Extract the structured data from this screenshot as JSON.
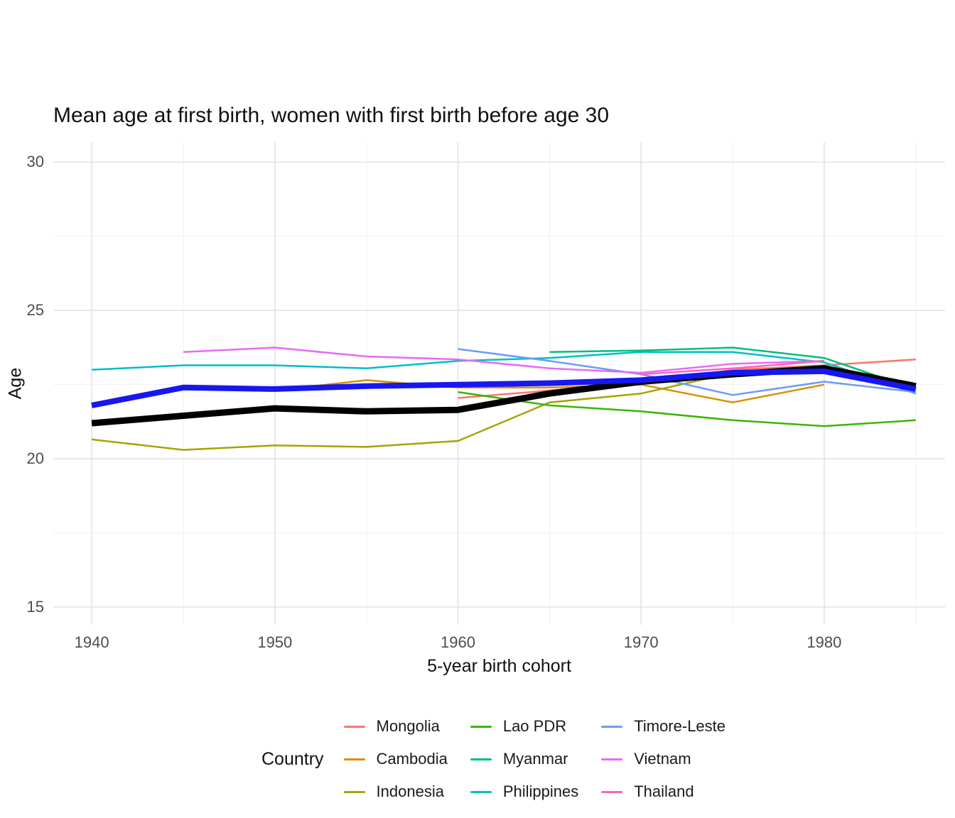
{
  "chart_data": {
    "type": "line",
    "title": "Mean age at first birth, women with first birth before age 30",
    "xlabel": "5-year birth cohort",
    "ylabel": "Age",
    "legend_title": "Country",
    "legend_position": "bottom",
    "grid": "major+minor",
    "x_axis": {
      "ticks": [
        1940,
        1950,
        1960,
        1970,
        1980
      ],
      "minor_ticks": [
        1945,
        1955,
        1965,
        1975,
        1985
      ],
      "range": [
        1937.9,
        1986.6
      ]
    },
    "y_axis": {
      "ticks": [
        15,
        20,
        25,
        30
      ],
      "minor_ticks": [
        17.5,
        22.5,
        27.5
      ],
      "range": [
        14.4,
        30.68
      ]
    },
    "series": [
      {
        "name": "Mongolia",
        "color": "#F8766D",
        "width": 2.5,
        "in_legend": true,
        "x": [
          1960,
          1965,
          1970,
          1975,
          1980,
          1985
        ],
        "y": [
          22.05,
          22.3,
          22.55,
          23.0,
          23.15,
          23.35
        ]
      },
      {
        "name": "Cambodia",
        "color": "#D89000",
        "width": 2.5,
        "in_legend": true,
        "x": [
          1950,
          1955,
          1960,
          1965,
          1970,
          1975,
          1980
        ],
        "y": [
          22.3,
          22.65,
          22.4,
          22.4,
          22.5,
          21.9,
          22.5
        ]
      },
      {
        "name": "Indonesia",
        "color": "#A3A500",
        "width": 2.5,
        "in_legend": true,
        "x": [
          1940,
          1945,
          1950,
          1955,
          1960,
          1965,
          1970,
          1975,
          1980
        ],
        "y": [
          20.65,
          20.3,
          20.45,
          20.4,
          20.6,
          21.9,
          22.2,
          22.9,
          23.15
        ]
      },
      {
        "name": "Lao PDR",
        "color": "#39B600",
        "width": 2.5,
        "in_legend": true,
        "x": [
          1960,
          1965,
          1970,
          1975,
          1980,
          1985
        ],
        "y": [
          22.25,
          21.8,
          21.6,
          21.3,
          21.1,
          21.3
        ]
      },
      {
        "name": "Myanmar",
        "color": "#00BF7D",
        "width": 2.5,
        "in_legend": true,
        "x": [
          1965,
          1970,
          1975,
          1980,
          1985
        ],
        "y": [
          23.6,
          23.65,
          23.75,
          23.4,
          22.35
        ]
      },
      {
        "name": "Philippines",
        "color": "#00BFC4",
        "width": 2.5,
        "in_legend": true,
        "x": [
          1940,
          1945,
          1950,
          1955,
          1960,
          1965,
          1970,
          1975,
          1980,
          1985
        ],
        "y": [
          23.0,
          23.15,
          23.15,
          23.05,
          23.3,
          23.4,
          23.6,
          23.6,
          23.25,
          22.2
        ]
      },
      {
        "name": "Timore-Leste",
        "color": "#6E9BF5",
        "width": 2.5,
        "in_legend": true,
        "x": [
          1960,
          1965,
          1970,
          1975,
          1980,
          1985
        ],
        "y": [
          23.7,
          23.3,
          22.85,
          22.15,
          22.6,
          22.25
        ]
      },
      {
        "name": "Vietnam",
        "color": "#E76BF3",
        "width": 2.5,
        "in_legend": true,
        "x": [
          1945,
          1950,
          1955,
          1960,
          1965,
          1970,
          1975,
          1980
        ],
        "y": [
          23.6,
          23.75,
          23.45,
          23.35,
          23.05,
          22.9,
          23.2,
          23.3
        ]
      },
      {
        "name": "Thailand",
        "color": "#FF62BC",
        "width": 2.5,
        "in_legend": true,
        "x": [
          1970,
          1975,
          1980
        ],
        "y": [
          22.85,
          23.05,
          23.3
        ]
      },
      {
        "name": "unlabeled-thick-black-line",
        "color": "#000000",
        "width": 9,
        "in_legend": false,
        "x": [
          1940,
          1945,
          1950,
          1955,
          1960,
          1965,
          1970,
          1975,
          1980,
          1985
        ],
        "y": [
          21.2,
          21.45,
          21.7,
          21.6,
          21.65,
          22.2,
          22.6,
          22.85,
          23.05,
          22.45
        ]
      },
      {
        "name": "unlabeled-thick-blue-line",
        "color": "#1717f0",
        "width": 8,
        "in_legend": false,
        "x": [
          1940,
          1945,
          1950,
          1955,
          1960,
          1965,
          1970,
          1975,
          1980,
          1985
        ],
        "y": [
          21.8,
          22.4,
          22.35,
          22.45,
          22.5,
          22.55,
          22.65,
          22.9,
          22.95,
          22.35
        ]
      }
    ]
  }
}
